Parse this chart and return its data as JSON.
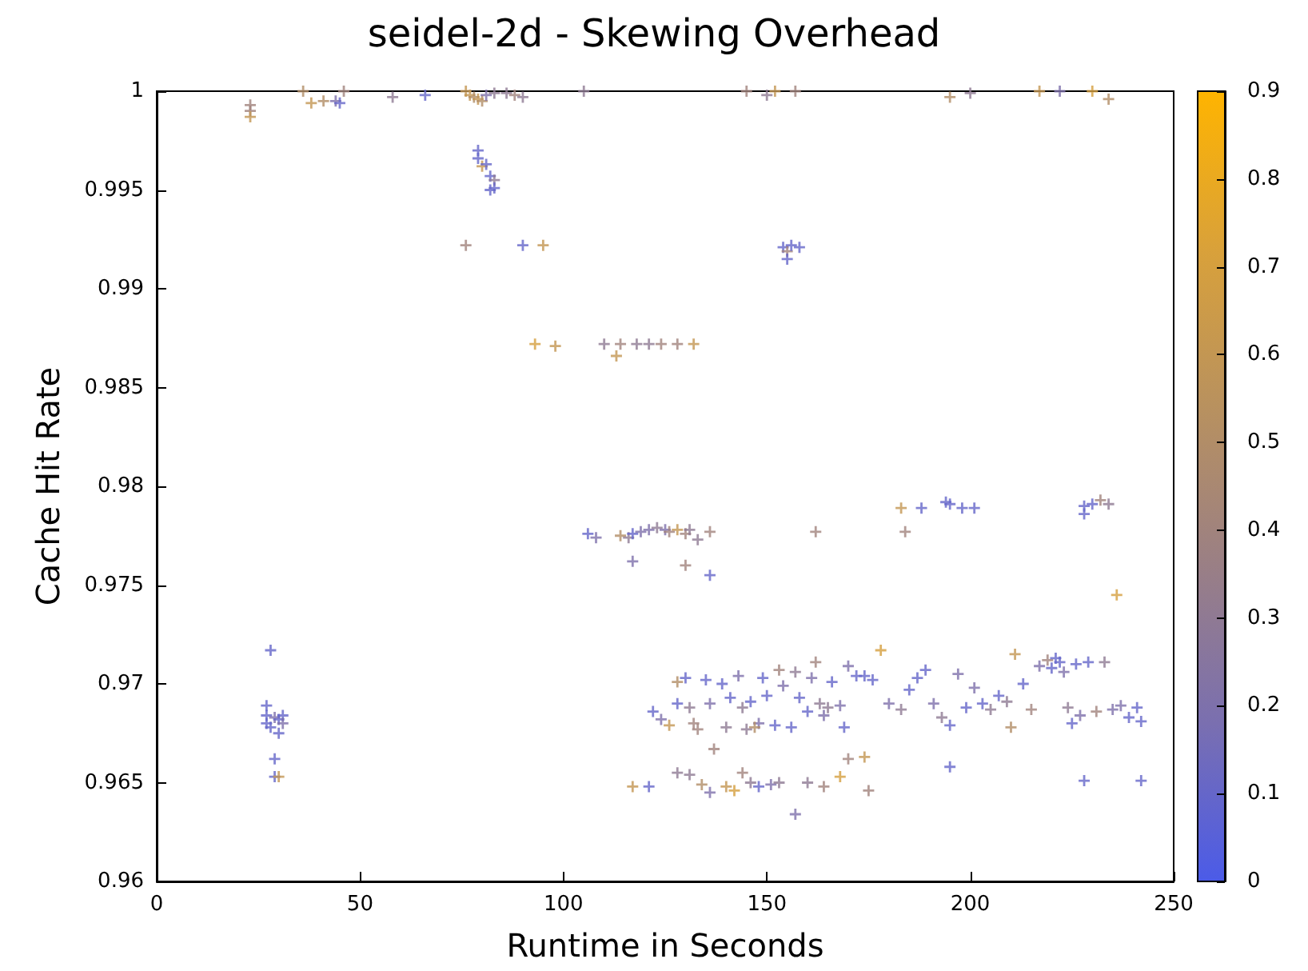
{
  "chart_data": {
    "type": "scatter",
    "title": "seidel-2d - Skewing Overhead",
    "xlabel": "Runtime in Seconds",
    "ylabel": "Cache Hit Rate",
    "xlim": [
      0,
      250
    ],
    "xticks": [
      0,
      50,
      100,
      150,
      200,
      250
    ],
    "ylim": [
      0.96,
      1
    ],
    "yticks": [
      0.96,
      0.965,
      0.97,
      0.975,
      0.98,
      0.985,
      0.99,
      0.995,
      1
    ],
    "clim": [
      0,
      0.9
    ],
    "cticks": [
      0,
      0.1,
      0.2,
      0.3,
      0.4,
      0.5,
      0.6,
      0.7,
      0.8,
      0.9
    ],
    "grid": false,
    "marker": "cross",
    "x": [
      23,
      23,
      23,
      36,
      38,
      41,
      44,
      45,
      46,
      58,
      66,
      76,
      77,
      78,
      79,
      80,
      81,
      83,
      86,
      88,
      90,
      105,
      145,
      150,
      152,
      157,
      195,
      200,
      217,
      222,
      230,
      234,
      79,
      79,
      80,
      81,
      82,
      83,
      83,
      82,
      76,
      90,
      95,
      154,
      155,
      156,
      158,
      155,
      93,
      98,
      110,
      113,
      114,
      118,
      121,
      124,
      128,
      132,
      106,
      108,
      114,
      116,
      117,
      119,
      121,
      123,
      125,
      117,
      128,
      130,
      131,
      133,
      136,
      136,
      130,
      126,
      162,
      183,
      184,
      188,
      194,
      195,
      198,
      201,
      228,
      228,
      230,
      232,
      234,
      236,
      28,
      27,
      27,
      27,
      28,
      29,
      30,
      31,
      31,
      30,
      29,
      29,
      30,
      122,
      124,
      126,
      128,
      128,
      130,
      131,
      132,
      133,
      135,
      136,
      137,
      139,
      140,
      141,
      143,
      144,
      146,
      148,
      149,
      150,
      152,
      153,
      154,
      156,
      157,
      158,
      160,
      161,
      162,
      163,
      164,
      165,
      166,
      168,
      169,
      170,
      172,
      174,
      176,
      178,
      180,
      183,
      185,
      187,
      189,
      191,
      193,
      195,
      197,
      199,
      201,
      203,
      205,
      207,
      209,
      211,
      213,
      215,
      217,
      219,
      220,
      221,
      222,
      223,
      224,
      226,
      227,
      229,
      231,
      233,
      235,
      237,
      239,
      241,
      242,
      225,
      210,
      195,
      228,
      242,
      117,
      121,
      128,
      131,
      134,
      136,
      140,
      142,
      144,
      146,
      148,
      151,
      153,
      157,
      160,
      164,
      168,
      170,
      174,
      175,
      147,
      145
    ],
    "values": [
      0.9993,
      0.999,
      0.9987,
      1,
      0.9994,
      0.9995,
      0.9995,
      0.9994,
      1,
      0.9997,
      0.9998,
      1,
      0.9998,
      0.9997,
      0.9996,
      0.9995,
      0.9998,
      0.9999,
      0.9999,
      0.9998,
      0.9997,
      1,
      1,
      0.9998,
      1,
      1,
      0.9997,
      0.9999,
      1,
      1,
      1,
      0.9996,
      0.997,
      0.9966,
      0.9962,
      0.9963,
      0.9957,
      0.9955,
      0.9951,
      0.995,
      0.9922,
      0.9922,
      0.9922,
      0.9921,
      0.9919,
      0.9922,
      0.9921,
      0.9915,
      0.9872,
      0.9871,
      0.9872,
      0.9866,
      0.9872,
      0.9872,
      0.9872,
      0.9872,
      0.9872,
      0.9872,
      0.9776,
      0.9774,
      0.9775,
      0.9774,
      0.9776,
      0.9777,
      0.9778,
      0.9779,
      0.9778,
      0.9762,
      0.9778,
      0.9776,
      0.9778,
      0.9773,
      0.9777,
      0.9755,
      0.976,
      0.9777,
      0.9777,
      0.9789,
      0.9777,
      0.9789,
      0.9792,
      0.9791,
      0.9789,
      0.9789,
      0.979,
      0.9786,
      0.9791,
      0.9793,
      0.9791,
      0.9745,
      0.9717,
      0.9689,
      0.9684,
      0.968,
      0.9678,
      0.9683,
      0.9682,
      0.9684,
      0.968,
      0.9675,
      0.9662,
      0.9653,
      0.9653,
      0.9686,
      0.9682,
      0.9679,
      0.969,
      0.9701,
      0.9703,
      0.9688,
      0.968,
      0.9677,
      0.9702,
      0.969,
      0.9667,
      0.97,
      0.9678,
      0.9693,
      0.9704,
      0.9688,
      0.9691,
      0.968,
      0.9703,
      0.9694,
      0.9679,
      0.9707,
      0.9699,
      0.9678,
      0.9706,
      0.9693,
      0.9686,
      0.9703,
      0.9711,
      0.969,
      0.9684,
      0.9688,
      0.9701,
      0.9689,
      0.9678,
      0.9709,
      0.9704,
      0.9704,
      0.9702,
      0.9717,
      0.969,
      0.9687,
      0.9697,
      0.9703,
      0.9707,
      0.969,
      0.9683,
      0.9679,
      0.9705,
      0.9688,
      0.9698,
      0.969,
      0.9687,
      0.9694,
      0.9691,
      0.9715,
      0.97,
      0.9687,
      0.9709,
      0.9712,
      0.9708,
      0.9713,
      0.9711,
      0.9706,
      0.9688,
      0.971,
      0.9684,
      0.9711,
      0.9686,
      0.9711,
      0.9687,
      0.9689,
      0.9683,
      0.9688,
      0.9681,
      0.968,
      0.9678,
      0.9658,
      0.9651,
      0.9651,
      0.9648,
      0.9648,
      0.9655,
      0.9654,
      0.9649,
      0.9645,
      0.9648,
      0.9646,
      0.9655,
      0.965,
      0.9648,
      0.9649,
      0.965,
      0.9634,
      0.965,
      0.9648,
      0.9653,
      0.9662,
      0.9663,
      0.9646,
      0.9678,
      0.9677
    ],
    "cvalues": [
      0.4,
      0.4,
      0.6,
      0.5,
      0.6,
      0.5,
      0.2,
      0.1,
      0.4,
      0.3,
      0.1,
      0.6,
      0.6,
      0.5,
      0.6,
      0.5,
      0.2,
      0.3,
      0.3,
      0.4,
      0.3,
      0.3,
      0.4,
      0.3,
      0.6,
      0.4,
      0.5,
      0.3,
      0.6,
      0.2,
      0.7,
      0.5,
      0.1,
      0.1,
      0.6,
      0.1,
      0.1,
      0.3,
      0.1,
      0.1,
      0.4,
      0.1,
      0.6,
      0.1,
      0.4,
      0.1,
      0.1,
      0.1,
      0.7,
      0.6,
      0.3,
      0.6,
      0.4,
      0.3,
      0.3,
      0.4,
      0.4,
      0.6,
      0.1,
      0.2,
      0.5,
      0.3,
      0.1,
      0.2,
      0.2,
      0.3,
      0.2,
      0.2,
      0.6,
      0.4,
      0.3,
      0.3,
      0.4,
      0.1,
      0.4,
      0.4,
      0.4,
      0.6,
      0.4,
      0.1,
      0.1,
      0.1,
      0.1,
      0.1,
      0.1,
      0.1,
      0.1,
      0.4,
      0.3,
      0.7,
      0.1,
      0.1,
      0.1,
      0.1,
      0.1,
      0.2,
      0.1,
      0.1,
      0.2,
      0.1,
      0.1,
      0.1,
      0.6,
      0.1,
      0.2,
      0.6,
      0.1,
      0.5,
      0.1,
      0.3,
      0.4,
      0.4,
      0.1,
      0.2,
      0.4,
      0.1,
      0.3,
      0.1,
      0.2,
      0.3,
      0.1,
      0.2,
      0.1,
      0.1,
      0.1,
      0.4,
      0.2,
      0.1,
      0.3,
      0.1,
      0.1,
      0.2,
      0.4,
      0.3,
      0.2,
      0.3,
      0.1,
      0.2,
      0.1,
      0.2,
      0.1,
      0.1,
      0.1,
      0.7,
      0.2,
      0.3,
      0.1,
      0.1,
      0.1,
      0.2,
      0.3,
      0.1,
      0.2,
      0.1,
      0.2,
      0.1,
      0.3,
      0.1,
      0.3,
      0.6,
      0.1,
      0.4,
      0.2,
      0.4,
      0.1,
      0.1,
      0.1,
      0.2,
      0.3,
      0.1,
      0.2,
      0.1,
      0.4,
      0.3,
      0.2,
      0.2,
      0.1,
      0.1,
      0.1,
      0.1,
      0.5,
      0.1,
      0.1,
      0.1,
      0.6,
      0.1,
      0.3,
      0.3,
      0.5,
      0.2,
      0.6,
      0.7,
      0.4,
      0.3,
      0.1,
      0.2,
      0.3,
      0.2,
      0.3,
      0.4,
      0.7,
      0.4,
      0.6,
      0.4,
      0.5,
      0.3
    ]
  }
}
